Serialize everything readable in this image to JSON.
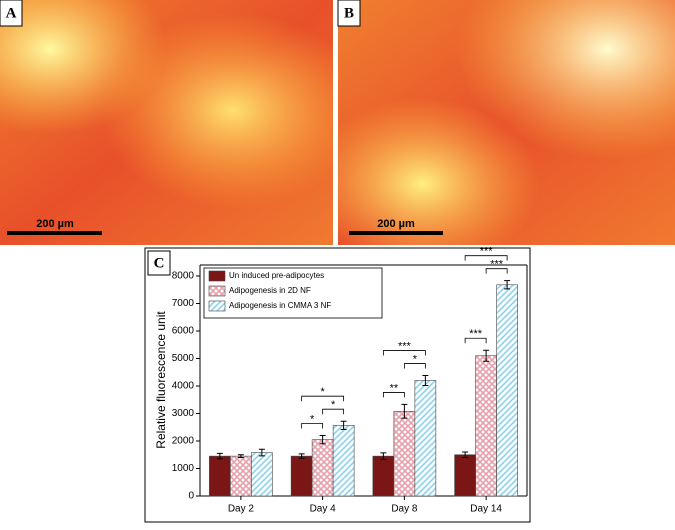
{
  "panels": {
    "a": {
      "label": "A",
      "scale_bar": "200 µm"
    },
    "b": {
      "label": "B",
      "scale_bar": "200 µm"
    },
    "c": {
      "label": "C"
    }
  },
  "chart_data": {
    "type": "bar",
    "ylabel": "Relative fluorescence unit",
    "categories": [
      "Day 2",
      "Day 4",
      "Day 8",
      "Day 14"
    ],
    "series": [
      {
        "name": "Un induced pre-adipocytes",
        "color": "#7a1616",
        "hatch": "none",
        "values": [
          1450,
          1450,
          1450,
          1500
        ],
        "errors": [
          100,
          80,
          120,
          100
        ]
      },
      {
        "name": "Adipogenesis in 2D NF",
        "color": "#e8a0ab",
        "hatch": "cross",
        "values": [
          1450,
          2050,
          3080,
          5100
        ],
        "errors": [
          50,
          150,
          250,
          200
        ]
      },
      {
        "name": "Adipogenesis in CMMA 3 NF",
        "color": "#8fd0ea",
        "hatch": "diagonal",
        "values": [
          1580,
          2570,
          4200,
          7680
        ],
        "errors": [
          120,
          150,
          180,
          150
        ]
      }
    ],
    "ylim": [
      0,
      8400
    ],
    "yticks": [
      0,
      1000,
      2000,
      3000,
      4000,
      5000,
      6000,
      7000,
      8000
    ],
    "legend": "upper left",
    "annotations": [
      {
        "text": "*",
        "category": 1,
        "series": [
          0,
          1
        ]
      },
      {
        "text": "*",
        "category": 1,
        "series": [
          1,
          2
        ]
      },
      {
        "text": "*",
        "category": 1,
        "series": [
          0,
          2
        ]
      },
      {
        "text": "**",
        "category": 2,
        "series": [
          0,
          1
        ]
      },
      {
        "text": "*",
        "category": 2,
        "series": [
          1,
          2
        ]
      },
      {
        "text": "***",
        "category": 2,
        "series": [
          0,
          2
        ]
      },
      {
        "text": "***",
        "category": 3,
        "series": [
          0,
          1
        ]
      },
      {
        "text": "***",
        "category": 3,
        "series": [
          1,
          2
        ]
      },
      {
        "text": "***",
        "category": 3,
        "series": [
          0,
          2
        ]
      }
    ]
  }
}
